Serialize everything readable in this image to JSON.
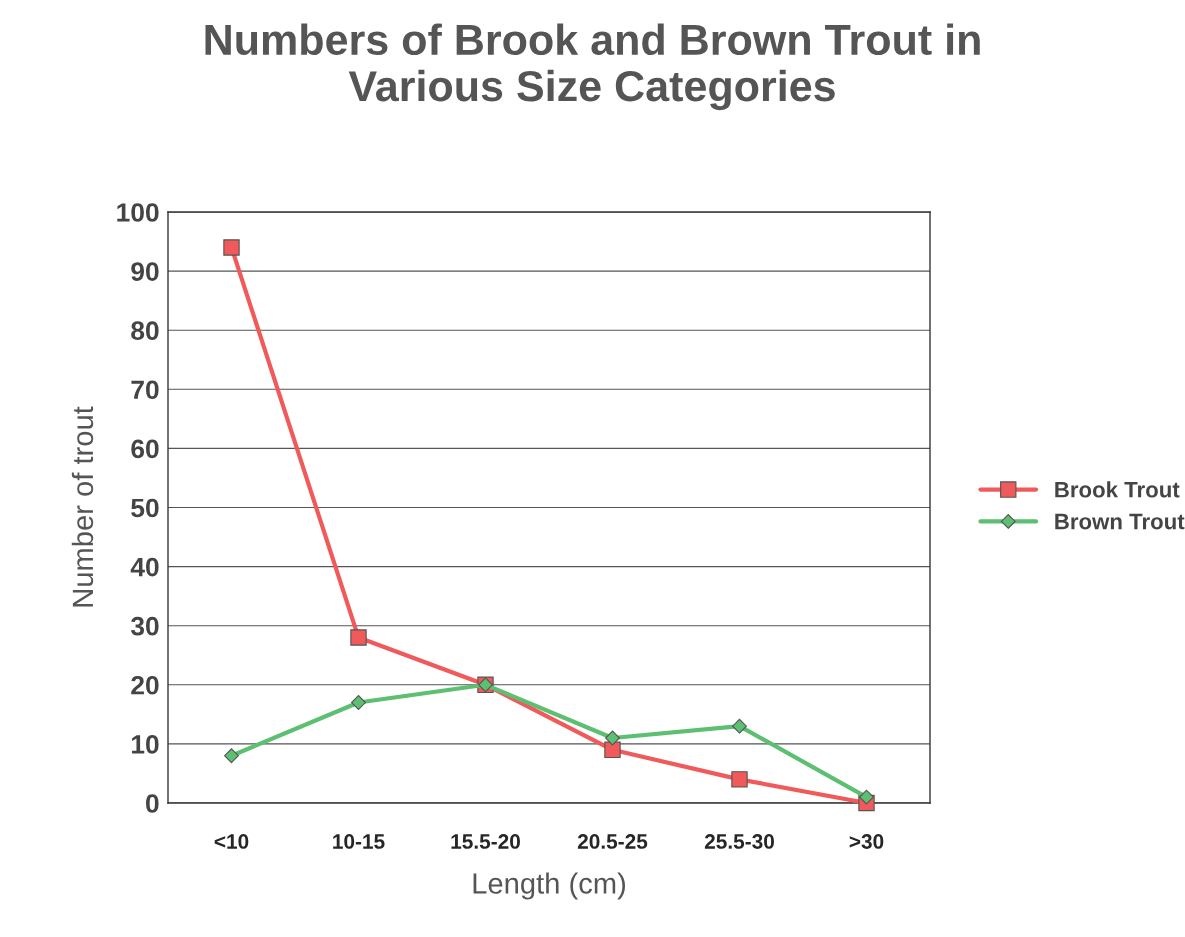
{
  "chart_data": {
    "type": "line",
    "title": "Numbers of Brook and Brown Trout in\nVarious Size Categories",
    "xlabel": "Length (cm)",
    "ylabel": "Number of trout",
    "categories": [
      "<10",
      "10-15",
      "15.5-20",
      "20.5-25",
      "25.5-30",
      ">30"
    ],
    "series": [
      {
        "name": "Brook Trout",
        "color": "#f05a5a",
        "marker": "square",
        "values": [
          94,
          28,
          20,
          9,
          4,
          0
        ]
      },
      {
        "name": "Brown Trout",
        "color": "#5cbf72",
        "marker": "diamond",
        "values": [
          8,
          17,
          20,
          11,
          13,
          1
        ]
      }
    ],
    "ylim": [
      0,
      100
    ],
    "yticks": [
      0,
      10,
      20,
      30,
      40,
      50,
      60,
      70,
      80,
      90,
      100
    ],
    "grid": "y",
    "legend": "right",
    "line_style": "solid"
  }
}
